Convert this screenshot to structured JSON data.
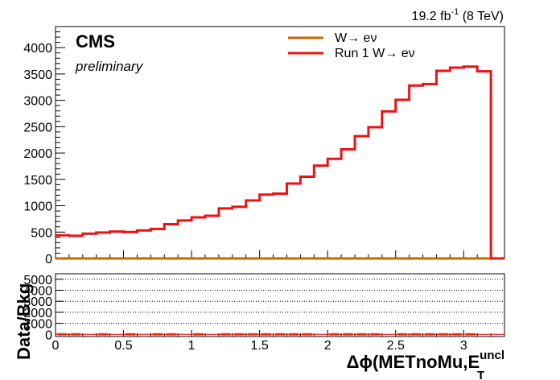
{
  "lumi": {
    "label": "19.2 fb",
    "sup": "-1",
    "energy": " (8 TeV)"
  },
  "cms_label": "CMS",
  "prelim_label": "preliminary",
  "legend": [
    {
      "label": "W→ eν",
      "color": "#cc6600"
    },
    {
      "label": "Run 1 W→ eν",
      "color": "#ee1111"
    }
  ],
  "ratio_ylabel": "Data/Bkg",
  "xlabel": {
    "main": "Δϕ(METnoMu,E",
    "sup": "uncl",
    "sub": "T"
  },
  "chart_data": [
    {
      "type": "step-histogram",
      "title": "",
      "xlim": [
        0,
        3.3
      ],
      "ylim": [
        0,
        4400
      ],
      "yticks": [
        0,
        500,
        1000,
        1500,
        2000,
        2500,
        3000,
        3500,
        4000
      ],
      "xticks": [
        0,
        0.5,
        1,
        1.5,
        2,
        2.5,
        3
      ],
      "bin_width": 0.1,
      "series": [
        {
          "name": "Run 1 W→ eν",
          "color": "#ee1111",
          "x_low_edges": [
            0,
            0.1,
            0.2,
            0.3,
            0.4,
            0.5,
            0.6,
            0.7,
            0.8,
            0.9,
            1.0,
            1.1,
            1.2,
            1.3,
            1.4,
            1.5,
            1.6,
            1.7,
            1.8,
            1.9,
            2.0,
            2.1,
            2.2,
            2.3,
            2.4,
            2.5,
            2.6,
            2.7,
            2.8,
            2.9,
            3.0,
            3.1,
            3.2
          ],
          "values": [
            440,
            430,
            470,
            490,
            510,
            500,
            530,
            560,
            650,
            720,
            780,
            810,
            950,
            980,
            1100,
            1210,
            1230,
            1420,
            1550,
            1760,
            1890,
            2070,
            2320,
            2490,
            2790,
            3010,
            3280,
            3310,
            3560,
            3620,
            3640,
            3550,
            0
          ]
        },
        {
          "name": "W→ eν",
          "color": "#cc6600",
          "x_low_edges": [
            0,
            0.1,
            0.2,
            0.3,
            0.4,
            0.5,
            0.6,
            0.7,
            0.8,
            0.9,
            1.0,
            1.1,
            1.2,
            1.3,
            1.4,
            1.5,
            1.6,
            1.7,
            1.8,
            1.9,
            2.0,
            2.1,
            2.2,
            2.3,
            2.4,
            2.5,
            2.6,
            2.7,
            2.8,
            2.9,
            3.0,
            3.1,
            3.2
          ],
          "values": [
            0,
            0,
            0,
            0,
            0,
            0,
            0,
            0,
            0,
            0,
            0,
            0,
            0,
            0,
            0,
            0,
            0,
            0,
            0,
            0,
            0,
            0,
            0,
            0,
            0,
            0,
            0,
            0,
            0,
            0,
            0,
            0,
            0
          ]
        }
      ]
    },
    {
      "type": "scatter",
      "ylabel": "Data/Bkg",
      "xlim": [
        0,
        3.3
      ],
      "ylim": [
        -200,
        5500
      ],
      "yticks": [
        0,
        1000,
        2000,
        3000,
        4000,
        5000
      ],
      "xticks": [
        0,
        0.5,
        1,
        1.5,
        2,
        2.5,
        3
      ],
      "grid_y": true,
      "series": [
        {
          "name": "",
          "color": "#cc6600",
          "x": [
            0.05,
            0.15,
            0.35,
            0.55,
            0.75,
            0.85,
            1.05,
            1.25,
            1.35,
            1.45,
            1.55,
            1.65,
            1.75,
            1.85,
            2.05,
            2.15,
            2.25,
            2.35,
            2.55,
            2.65,
            2.75,
            2.85,
            2.95,
            3.05
          ],
          "y": [
            0,
            0,
            0,
            0,
            0,
            0,
            0,
            0,
            0,
            0,
            0,
            0,
            0,
            0,
            0,
            0,
            0,
            0,
            0,
            0,
            0,
            0,
            0,
            0
          ]
        }
      ]
    }
  ]
}
